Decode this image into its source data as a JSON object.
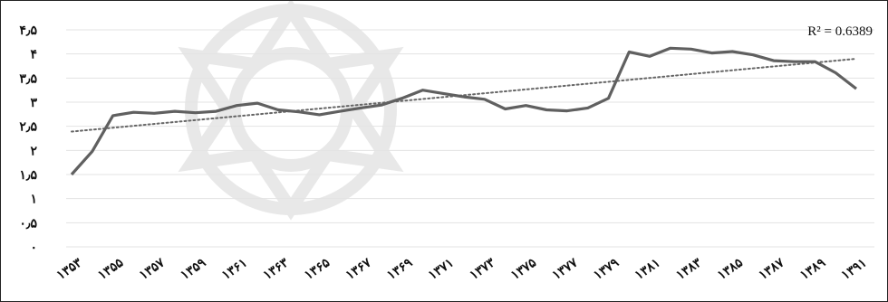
{
  "chart_data": {
    "type": "line",
    "title": "",
    "xlabel": "",
    "ylabel": "",
    "x_tick_labels": [
      "۱۳۵۳",
      "۱۳۵۵",
      "۱۳۵۷",
      "۱۳۵۹",
      "۱۳۶۱",
      "۱۳۶۳",
      "۱۳۶۵",
      "۱۳۶۷",
      "۱۳۶۹",
      "۱۳۷۱",
      "۱۳۷۳",
      "۱۳۷۵",
      "۱۳۷۷",
      "۱۳۷۹",
      "۱۳۸۱",
      "۱۳۸۳",
      "۱۳۸۵",
      "۱۳۸۷",
      "۱۳۸۹",
      "۱۳۹۱"
    ],
    "y_tick_labels": [
      "۰",
      "۰٫۵",
      "۱",
      "۱٫۵",
      "۲",
      "۲٫۵",
      "۳",
      "۳٫۵",
      "۴",
      "۴٫۵"
    ],
    "ylim": [
      0,
      4.5
    ],
    "x": [
      1353,
      1354,
      1355,
      1356,
      1357,
      1358,
      1359,
      1360,
      1361,
      1362,
      1363,
      1364,
      1365,
      1366,
      1367,
      1368,
      1369,
      1370,
      1371,
      1372,
      1373,
      1374,
      1375,
      1376,
      1377,
      1378,
      1379,
      1380,
      1381,
      1382,
      1383,
      1384,
      1385,
      1386,
      1387,
      1388,
      1389,
      1390,
      1391
    ],
    "series": [
      {
        "values": [
          1.5,
          1.98,
          2.72,
          2.79,
          2.77,
          2.81,
          2.78,
          2.81,
          2.93,
          2.98,
          2.84,
          2.8,
          2.74,
          2.81,
          2.88,
          2.94,
          3.08,
          3.25,
          3.18,
          3.11,
          3.06,
          2.86,
          2.93,
          2.84,
          2.82,
          2.88,
          3.08,
          4.04,
          3.95,
          4.12,
          4.1,
          4.02,
          4.05,
          3.98,
          3.86,
          3.84,
          3.84,
          3.61,
          3.28
        ],
        "color": "#606060",
        "style": "solid"
      }
    ],
    "trendline": {
      "type": "linear",
      "x_start": 1353,
      "y_start": 2.39,
      "x_end": 1391,
      "y_end": 3.9,
      "style": "dotted",
      "color": "#666666",
      "r_squared_label": "R² = 0.6389"
    },
    "grid": true,
    "legend": "none",
    "watermark": "decorative arabesque logo"
  }
}
